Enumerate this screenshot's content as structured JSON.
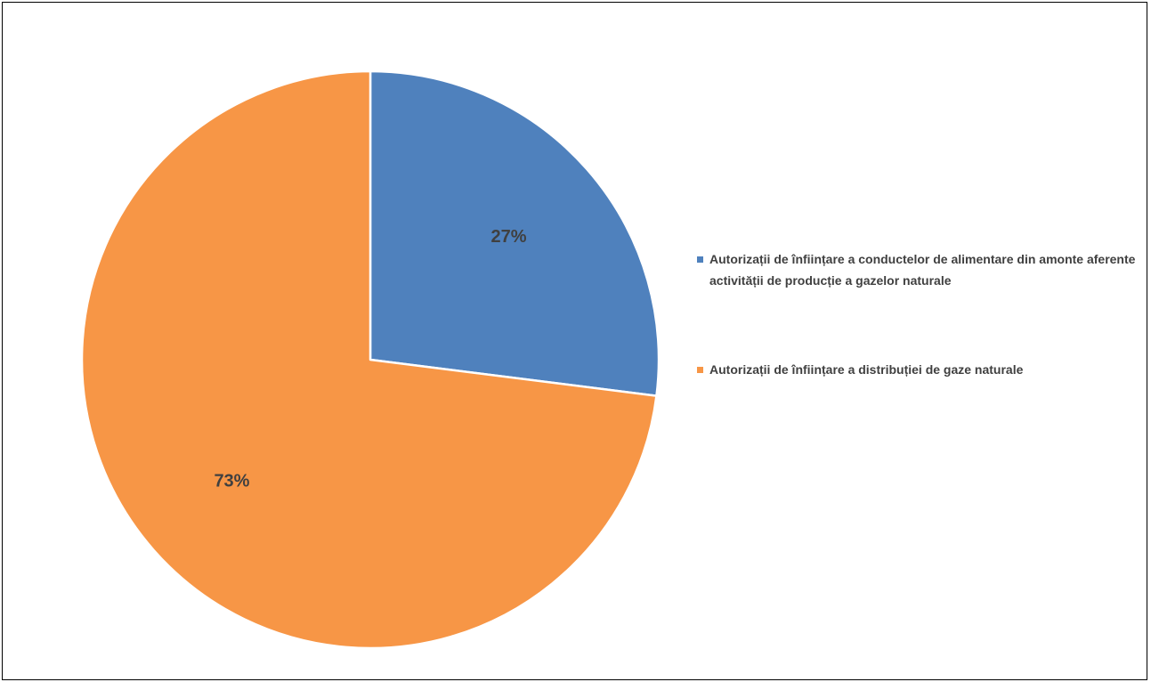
{
  "chart_data": {
    "type": "pie",
    "title": "",
    "slices": [
      {
        "label": "Autorizații de înființare a conductelor de alimentare din amonte aferente activității de producție a gazelor naturale",
        "value": 27,
        "display": "27%",
        "color": "#4f81bd"
      },
      {
        "label": "Autorizații de înființare a distribuției de gaze naturale",
        "value": 73,
        "display": "73%",
        "color": "#f79646"
      }
    ],
    "start_angle_deg": 0,
    "direction": "clockwise",
    "legend_position": "right"
  }
}
